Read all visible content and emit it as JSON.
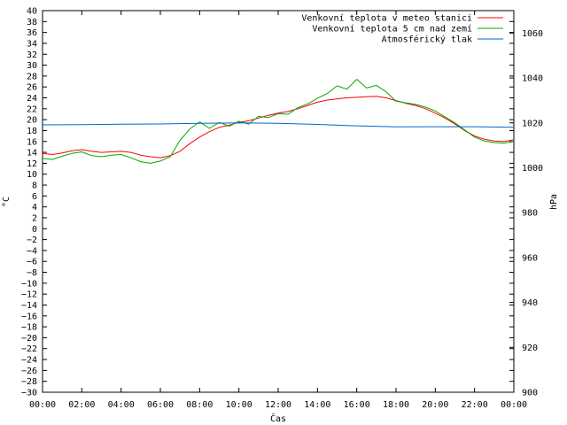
{
  "chart_data": {
    "type": "line",
    "xlabel": "Čas",
    "ylabel": "°C",
    "y2label": "hPa",
    "x_ticks": [
      "00:00",
      "02:00",
      "04:00",
      "06:00",
      "08:00",
      "10:00",
      "12:00",
      "14:00",
      "16:00",
      "18:00",
      "20:00",
      "22:00",
      "00:00"
    ],
    "xlim_hours": [
      0,
      24
    ],
    "ylim": [
      -30,
      40
    ],
    "y_ticks": [
      40,
      38,
      36,
      34,
      32,
      30,
      28,
      26,
      24,
      22,
      20,
      18,
      16,
      14,
      12,
      10,
      8,
      6,
      4,
      2,
      0,
      -2,
      -4,
      -6,
      -8,
      -10,
      -12,
      -14,
      -16,
      -18,
      -20,
      -22,
      -24,
      -26,
      -28,
      -30
    ],
    "y2lim": [
      900,
      1070
    ],
    "y2_ticks": [
      1060,
      1040,
      1020,
      1000,
      980,
      960,
      940,
      920,
      900
    ],
    "grid": false,
    "legend_position": "top-right",
    "series": [
      {
        "name": "Venkovní teplota v meteo stanici",
        "axis": "left",
        "color": "#ff0000",
        "x": [
          0,
          0.5,
          1,
          1.5,
          2,
          2.5,
          3,
          3.5,
          4,
          4.5,
          5,
          5.5,
          6,
          6.5,
          7,
          7.5,
          8,
          8.5,
          9,
          9.5,
          10,
          10.5,
          11,
          11.5,
          12,
          12.5,
          13,
          13.5,
          14,
          14.5,
          15,
          15.5,
          16,
          16.5,
          17,
          17.5,
          18,
          18.5,
          19,
          19.5,
          20,
          20.5,
          21,
          21.5,
          22,
          22.5,
          23,
          23.5,
          24
        ],
        "values": [
          13.8,
          13.6,
          13.9,
          14.3,
          14.5,
          14.2,
          14.0,
          14.1,
          14.2,
          14.0,
          13.5,
          13.2,
          13.0,
          13.4,
          14.2,
          15.6,
          16.8,
          17.8,
          18.6,
          19.0,
          19.5,
          19.8,
          20.3,
          20.8,
          21.2,
          21.5,
          22.0,
          22.6,
          23.2,
          23.6,
          23.8,
          24.0,
          24.1,
          24.2,
          24.3,
          24.0,
          23.5,
          23.0,
          22.6,
          22.0,
          21.2,
          20.3,
          19.2,
          18.0,
          17.0,
          16.4,
          16.1,
          16.0,
          16.3
        ]
      },
      {
        "name": "Venkovní teplota 5 cm nad zemí",
        "axis": "left",
        "color": "#00aa00",
        "x": [
          0,
          0.5,
          1,
          1.5,
          2,
          2.5,
          3,
          3.5,
          4,
          4.5,
          5,
          5.5,
          6,
          6.5,
          7,
          7.5,
          8,
          8.5,
          9,
          9.5,
          10,
          10.5,
          11,
          11.5,
          12,
          12.5,
          13,
          13.5,
          14,
          14.5,
          15,
          15.5,
          16,
          16.5,
          17,
          17.5,
          18,
          18.5,
          19,
          19.5,
          20,
          20.5,
          21,
          21.5,
          22,
          22.5,
          23,
          23.5,
          24
        ],
        "values": [
          12.9,
          12.7,
          13.3,
          13.8,
          14.1,
          13.4,
          13.2,
          13.5,
          13.6,
          13.0,
          12.3,
          12.0,
          12.4,
          13.2,
          16.2,
          18.3,
          19.6,
          18.4,
          19.5,
          18.8,
          19.7,
          19.2,
          20.6,
          20.4,
          21.1,
          21.0,
          22.2,
          22.9,
          23.9,
          24.8,
          26.2,
          25.6,
          27.4,
          25.8,
          26.3,
          25.1,
          23.4,
          23.1,
          22.8,
          22.3,
          21.6,
          20.5,
          19.4,
          18.1,
          16.8,
          16.1,
          15.8,
          15.7,
          16.0
        ]
      },
      {
        "name": "Atmosférický tlak",
        "axis": "right",
        "color": "#0066cc",
        "x": [
          0,
          2,
          4,
          6,
          8,
          10,
          12,
          14,
          16,
          18,
          20,
          22,
          24
        ],
        "values": [
          1019.1,
          1019.2,
          1019.4,
          1019.5,
          1019.8,
          1020.0,
          1019.8,
          1019.3,
          1018.7,
          1018.2,
          1018.3,
          1018.3,
          1018.0
        ]
      }
    ]
  }
}
